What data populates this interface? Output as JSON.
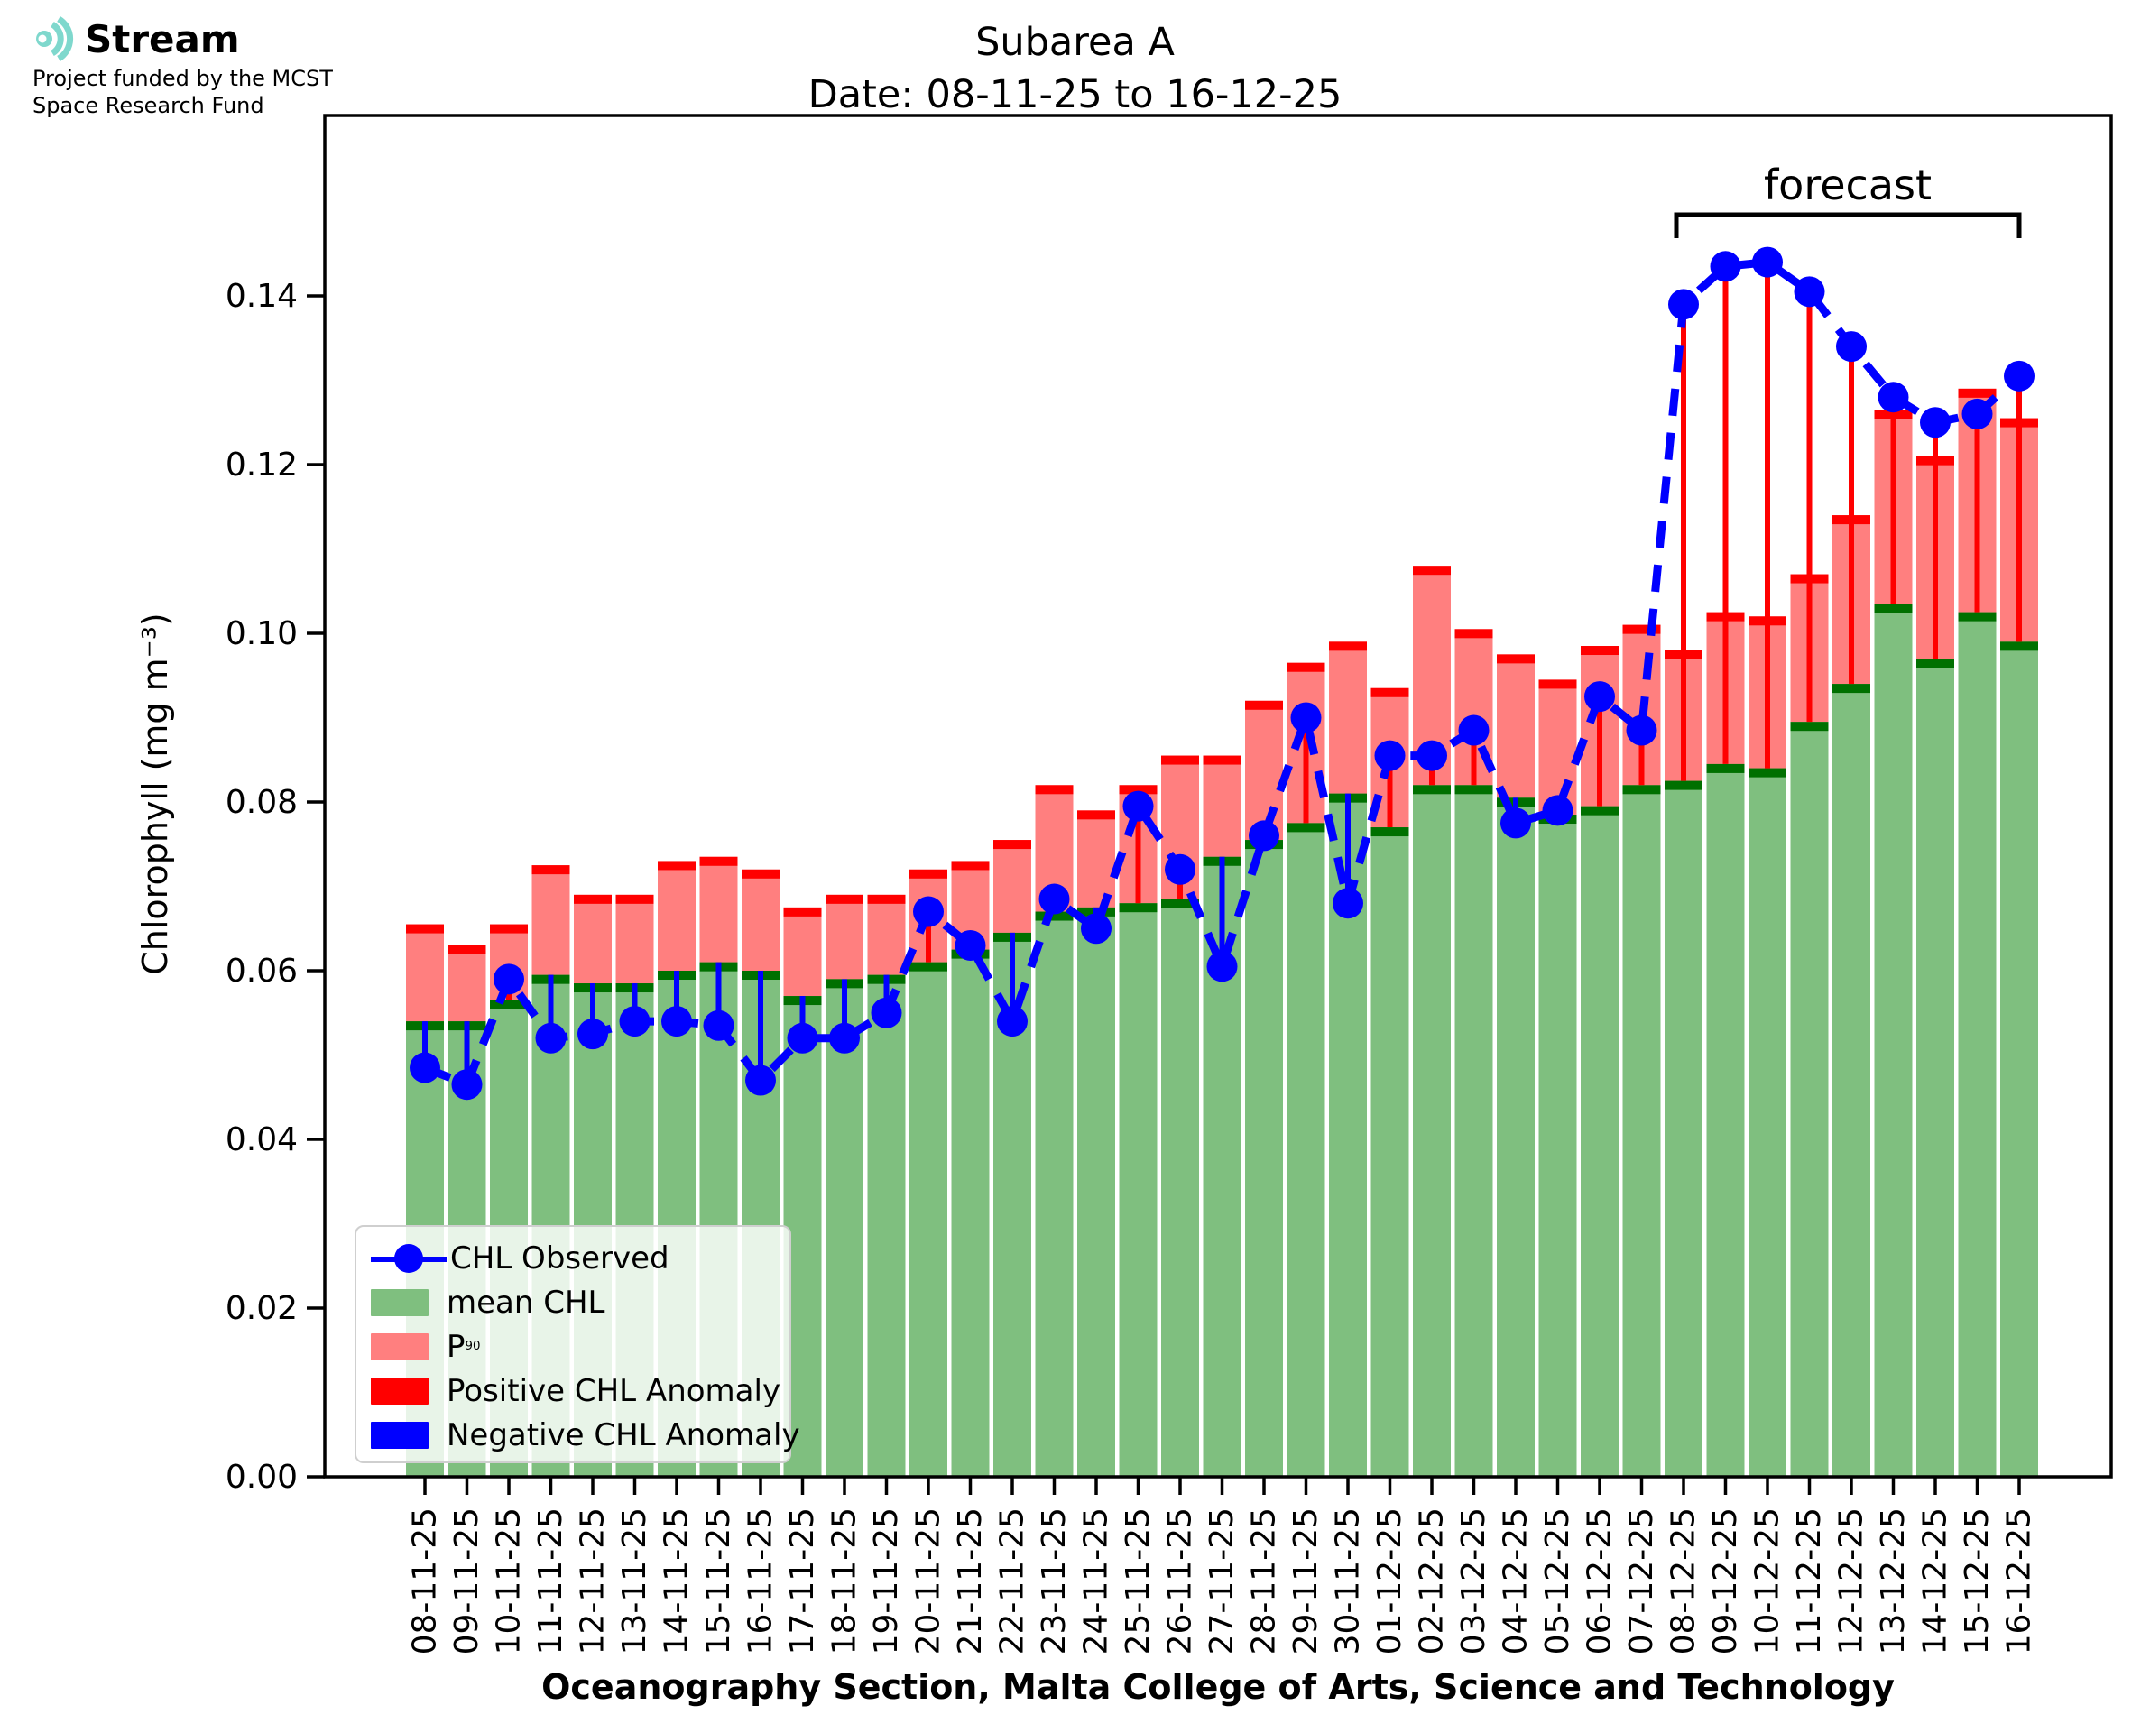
{
  "logo": {
    "brand": "Stream",
    "subtitle_line1": "Project funded by the MCST",
    "subtitle_line2": "Space Research Fund",
    "accent_color": "#7fd8cd"
  },
  "title": {
    "line1": "Subarea A",
    "line2": "Date: 08-11-25 to 16-12-25"
  },
  "forecast": {
    "label": "forecast",
    "start_date": "08-12-25",
    "end_date": "16-12-25"
  },
  "axes": {
    "ylabel": "Chlorophyll (mg m⁻³)",
    "xlabel": "Oceanography Section, Malta College of Arts, Science and Technology",
    "ytick_labels": [
      "0.00",
      "0.02",
      "0.04",
      "0.06",
      "0.08",
      "0.10",
      "0.12",
      "0.14"
    ],
    "ytick_values": [
      0.0,
      0.02,
      0.04,
      0.06,
      0.08,
      0.1,
      0.12,
      0.14
    ]
  },
  "legend": {
    "items": [
      {
        "label": "CHL Observed",
        "swatch": "observed-marker",
        "color": "#0000ff"
      },
      {
        "label": "mean CHL",
        "swatch": "patch",
        "color": "#7fbf7f"
      },
      {
        "label": "P",
        "sub": "90",
        "swatch": "patch",
        "color": "#ff7f7f"
      },
      {
        "label": "Positive CHL Anomaly",
        "swatch": "patch",
        "color": "#ff0000"
      },
      {
        "label": "Negative CHL Anomaly",
        "swatch": "patch",
        "color": "#0000ff"
      }
    ]
  },
  "colors": {
    "mean_bar": "#7fbf7f",
    "mean_cap": "#007000",
    "p90_bar": "#ff7f7f",
    "p90_cap": "#ff0000",
    "observed": "#0000ff",
    "positive_anomaly": "#ff0000",
    "negative_anomaly": "#0000ff",
    "axis": "#000000"
  },
  "chart_data": {
    "type": "bar",
    "title": "Subarea A",
    "subtitle": "Date: 08-11-25 to 16-12-25",
    "xlabel": "Oceanography Section, Malta College of Arts, Science and Technology",
    "ylabel": "Chlorophyll (mg m⁻³)",
    "ylim": [
      0,
      0.1614
    ],
    "grid": false,
    "legend_position": "lower left",
    "categories": [
      "08-11-25",
      "09-11-25",
      "10-11-25",
      "11-11-25",
      "12-11-25",
      "13-11-25",
      "14-11-25",
      "15-11-25",
      "16-11-25",
      "17-11-25",
      "18-11-25",
      "19-11-25",
      "20-11-25",
      "21-11-25",
      "22-11-25",
      "23-11-25",
      "24-11-25",
      "25-11-25",
      "26-11-25",
      "27-11-25",
      "28-11-25",
      "29-11-25",
      "30-11-25",
      "01-12-25",
      "02-12-25",
      "03-12-25",
      "04-12-25",
      "05-12-25",
      "06-12-25",
      "07-12-25",
      "08-12-25",
      "09-12-25",
      "10-12-25",
      "11-12-25",
      "12-12-25",
      "13-12-25",
      "14-12-25",
      "15-12-25",
      "16-12-25"
    ],
    "series": [
      {
        "name": "mean CHL",
        "type": "bar",
        "color": "#7fbf7f",
        "values": [
          0.054,
          0.054,
          0.0565,
          0.0595,
          0.0585,
          0.0585,
          0.06,
          0.061,
          0.06,
          0.057,
          0.059,
          0.0595,
          0.061,
          0.0625,
          0.0645,
          0.067,
          0.0675,
          0.068,
          0.0685,
          0.0735,
          0.0755,
          0.0775,
          0.081,
          0.077,
          0.082,
          0.082,
          0.0805,
          0.0785,
          0.0795,
          0.082,
          0.0825,
          0.0845,
          0.084,
          0.0895,
          0.094,
          0.1035,
          0.097,
          0.1025,
          0.099
        ]
      },
      {
        "name": "P90",
        "type": "bar",
        "color": "#ff7f7f",
        "values": [
          0.0655,
          0.063,
          0.0655,
          0.0725,
          0.069,
          0.069,
          0.073,
          0.0735,
          0.072,
          0.0675,
          0.069,
          0.069,
          0.072,
          0.073,
          0.0755,
          0.082,
          0.079,
          0.082,
          0.0855,
          0.0855,
          0.092,
          0.0965,
          0.099,
          0.0935,
          0.108,
          0.1005,
          0.0975,
          0.0945,
          0.0985,
          0.101,
          0.098,
          0.1025,
          0.102,
          0.107,
          0.114,
          0.1265,
          0.121,
          0.129,
          0.1255
        ]
      },
      {
        "name": "CHL Observed",
        "type": "line",
        "color": "#0000ff",
        "values": [
          0.0485,
          0.0465,
          0.059,
          0.052,
          0.0525,
          0.054,
          0.054,
          0.0535,
          0.047,
          0.052,
          0.052,
          0.055,
          0.067,
          0.063,
          0.054,
          0.0685,
          0.065,
          0.0795,
          0.072,
          0.0605,
          0.076,
          0.09,
          0.068,
          0.0855,
          0.0855,
          0.0885,
          0.0775,
          0.079,
          0.0925,
          0.0885,
          0.139,
          0.1435,
          0.144,
          0.1405,
          0.134,
          0.128,
          0.125,
          0.126,
          0.1305
        ]
      }
    ],
    "annotations": {
      "forecast_label": "forecast",
      "forecast_range": [
        "08-12-25",
        "16-12-25"
      ],
      "anomaly_rule": "red stem where observed > mean, blue stem where observed < mean"
    }
  }
}
